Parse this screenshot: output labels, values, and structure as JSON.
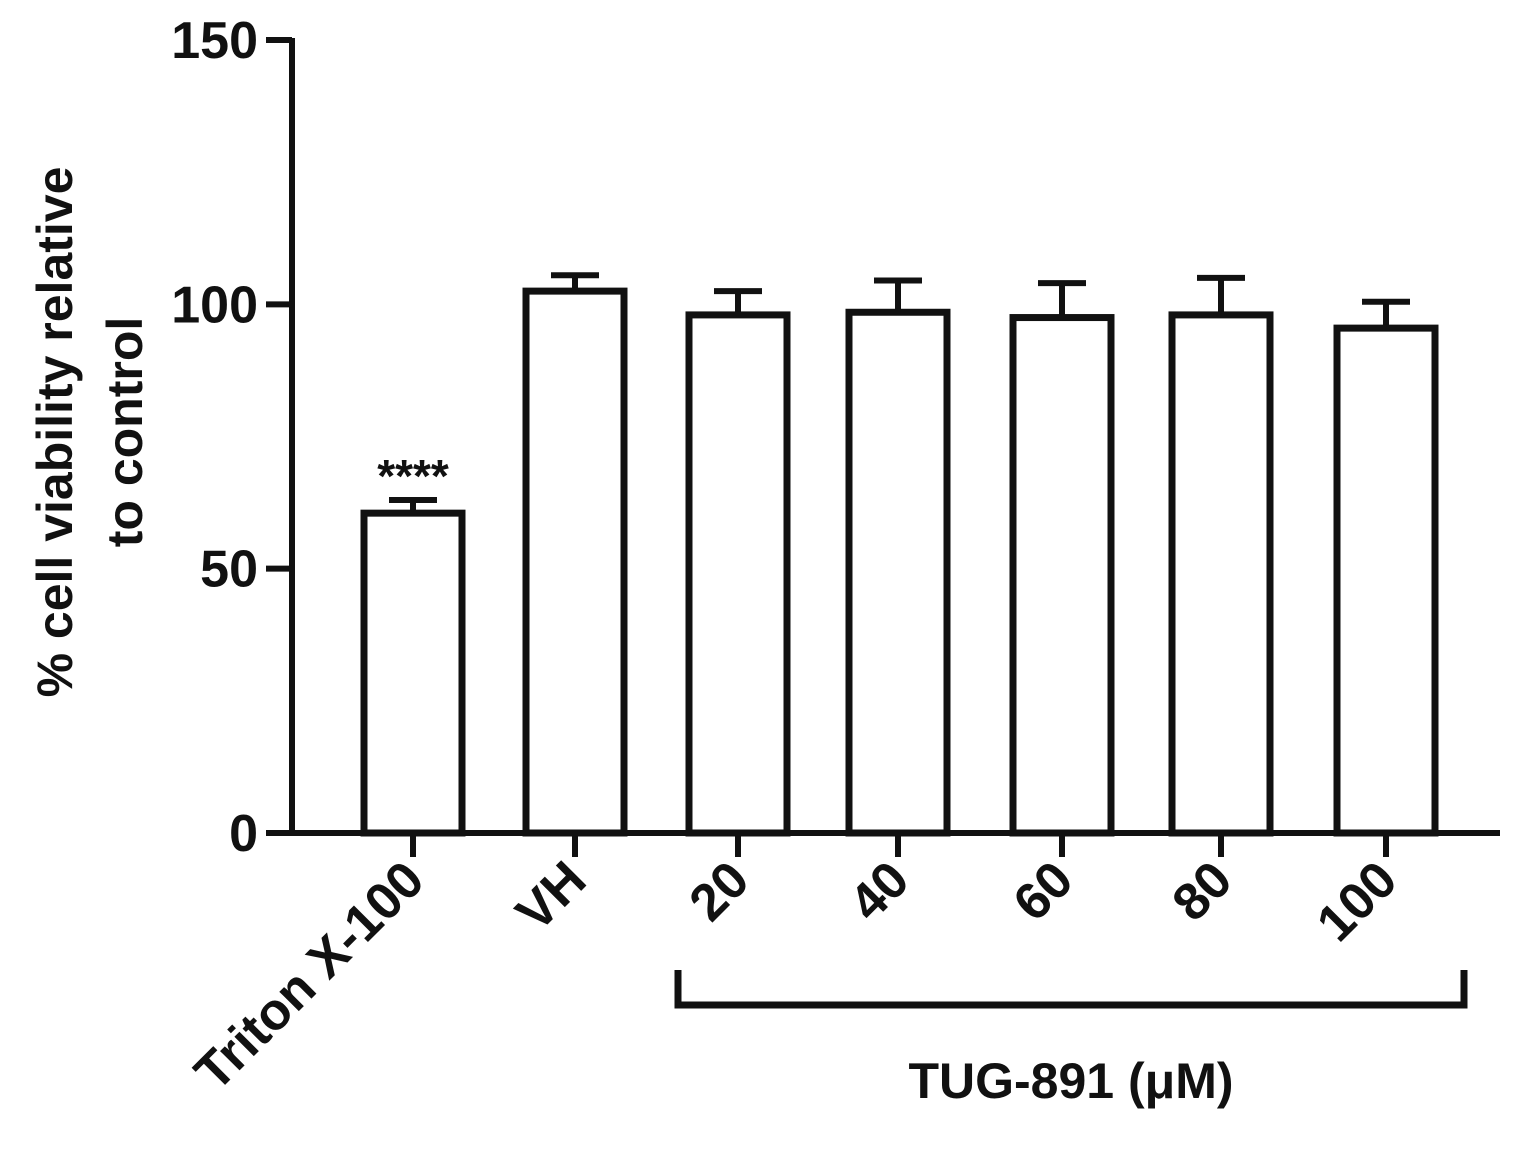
{
  "chart_data": {
    "type": "bar",
    "title": "",
    "xlabel": "",
    "ylabel_line1": "% cell viability relative",
    "ylabel_line2": "to control",
    "ylim": [
      0,
      150
    ],
    "yticks": [
      "0",
      "50",
      "100",
      "150"
    ],
    "grid": false,
    "categories": [
      "Triton X-100",
      "VH",
      "20",
      "40",
      "60",
      "80",
      "100"
    ],
    "values": [
      60.5,
      102.5,
      98,
      98.5,
      97.5,
      98,
      95.5
    ],
    "errors": [
      2.5,
      3.0,
      4.5,
      6.0,
      6.5,
      7.0,
      5.0
    ],
    "annotations": [
      {
        "category": "Triton X-100",
        "text": "****"
      }
    ],
    "group_bracket": {
      "categories": [
        "20",
        "40",
        "60",
        "80",
        "100"
      ],
      "label": "TUG-891 (μM)"
    },
    "colors": {
      "bar_fill": "#ffffff",
      "bar_stroke": "#111111",
      "axis": "#111111"
    }
  }
}
